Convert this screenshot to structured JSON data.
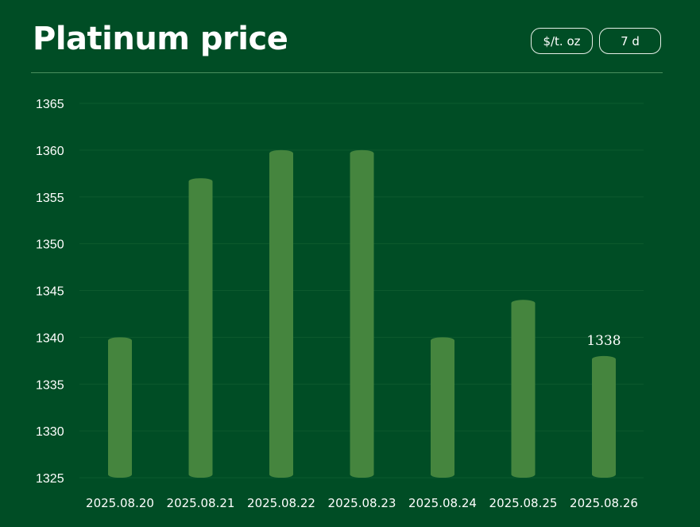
{
  "header": {
    "title": "Platinum price",
    "unit_button": "$/t. oz",
    "range_button": "7 d"
  },
  "chart_data": {
    "type": "bar",
    "title": "Platinum price",
    "categories": [
      "2025.08.20",
      "2025.08.21",
      "2025.08.22",
      "2025.08.23",
      "2025.08.24",
      "2025.08.25",
      "2025.08.26"
    ],
    "values": [
      1340,
      1357,
      1360,
      1360,
      1340,
      1344,
      1338
    ],
    "ylim": [
      1325,
      1365
    ],
    "yticks": [
      1325,
      1330,
      1335,
      1340,
      1345,
      1350,
      1355,
      1360,
      1365
    ],
    "data_labels": [
      {
        "category": "2025.08.26",
        "text": "1338"
      }
    ],
    "grid": true,
    "legend": "none",
    "colors": {
      "background": "#004d25",
      "bar": "#45853e",
      "grid": "#0d5a2e",
      "text": "#ffffff"
    }
  }
}
